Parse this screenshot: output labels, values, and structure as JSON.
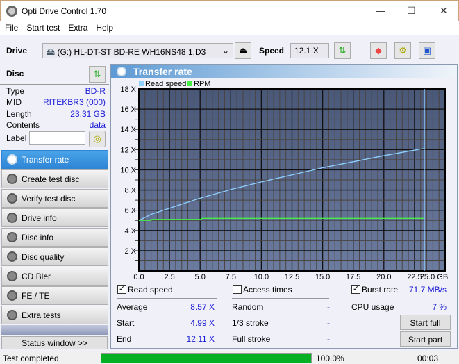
{
  "window": {
    "title": "Opti Drive Control 1.70",
    "minimize": "—",
    "maximize": "☐",
    "close": "✕"
  },
  "menu": [
    "File",
    "Start test",
    "Extra",
    "Help"
  ],
  "toolbar": {
    "drive_label": "Drive",
    "drive_value": "(G:)   HL-DT-ST BD-RE  WH16NS48 1.D3",
    "speed_label": "Speed",
    "speed_value": "12.1 X"
  },
  "disc": {
    "title": "Disc",
    "rows": [
      {
        "k": "Type",
        "v": "BD-R"
      },
      {
        "k": "MID",
        "v": "RITEKBR3 (000)"
      },
      {
        "k": "Length",
        "v": "23.31 GB"
      },
      {
        "k": "Contents",
        "v": "data"
      }
    ],
    "label_label": "Label",
    "label_value": ""
  },
  "nav": [
    "Transfer rate",
    "Create test disc",
    "Verify test disc",
    "Drive info",
    "Disc info",
    "Disc quality",
    "CD Bler",
    "FE / TE",
    "Extra tests"
  ],
  "status_window": "Status window >>",
  "panel": {
    "title": "Transfer rate"
  },
  "chart_data": {
    "type": "line",
    "xlim": [
      0,
      25
    ],
    "ylim": [
      0,
      18
    ],
    "x_unit": "GB",
    "xticks": [
      "0.0",
      "2.5",
      "5.0",
      "7.5",
      "10.0",
      "12.5",
      "15.0",
      "17.5",
      "20.0",
      "22.5",
      "25.0 GB"
    ],
    "yticks": [
      "2 X",
      "4 X",
      "6 X",
      "8 X",
      "10 X",
      "12 X",
      "14 X",
      "16 X",
      "18 X"
    ],
    "legend": "top-left",
    "grid": true,
    "series": [
      {
        "name": "Read speed",
        "color": "#8fd0ff",
        "x": [
          0,
          1,
          2.5,
          5,
          7.5,
          10,
          12.5,
          15,
          17.5,
          20,
          22.5,
          23.31
        ],
        "y": [
          4.99,
          5.6,
          6.2,
          7.2,
          8.05,
          8.8,
          9.5,
          10.2,
          10.8,
          11.4,
          11.95,
          12.11
        ]
      },
      {
        "name": "RPM",
        "color": "#44ee44",
        "x": [
          0,
          1.0,
          1.0,
          5.1,
          5.1,
          23.31
        ],
        "y": [
          5.0,
          5.0,
          5.1,
          5.1,
          5.2,
          5.2
        ]
      }
    ],
    "marker_x": 23.31
  },
  "stats": {
    "read_speed": "Read speed",
    "access_times": "Access times",
    "burst_rate": "Burst rate",
    "burst_value": "71.7 MB/s",
    "average": "Average",
    "average_v": "8.57 X",
    "start": "Start",
    "start_v": "4.99 X",
    "end": "End",
    "end_v": "12.11 X",
    "random": "Random",
    "random_v": "-",
    "third": "1/3 stroke",
    "third_v": "-",
    "full": "Full stroke",
    "full_v": "-",
    "cpu": "CPU usage",
    "cpu_v": "7 %",
    "start_full": "Start full",
    "start_part": "Start part",
    "read_checked": true,
    "access_checked": false,
    "burst_checked": true
  },
  "status": {
    "text": "Test completed",
    "progress": 100.0,
    "progress_text": "100.0%",
    "time": "00:03"
  }
}
